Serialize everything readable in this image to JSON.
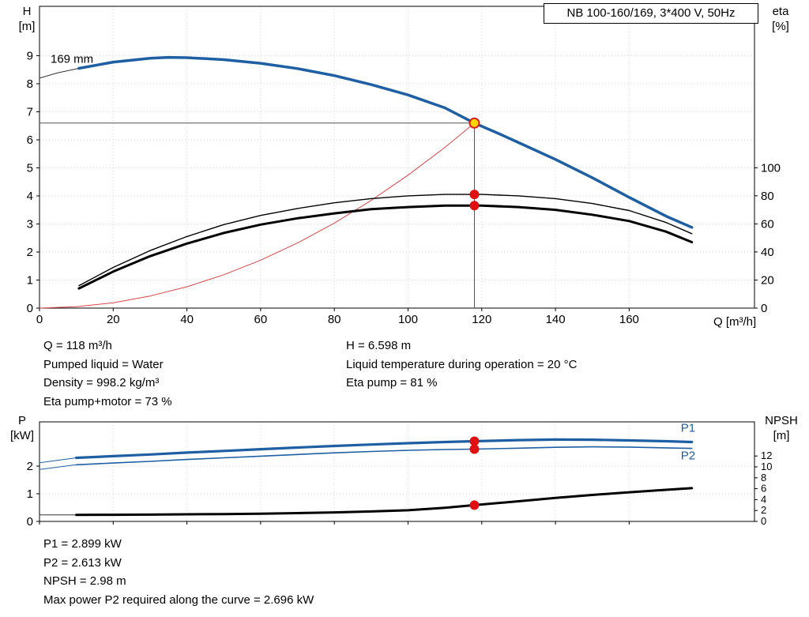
{
  "title_box": "NB 100-160/169, 3*400 V, 50Hz",
  "axis_corner_labels": {
    "top_left": [
      "H",
      "[m]"
    ],
    "top_right": [
      "eta",
      "[%]"
    ],
    "bottom_left": [
      "P",
      "[kW]"
    ],
    "bottom_right": [
      "NPSH",
      "[m]"
    ],
    "x_axis": "Q [m³/h]"
  },
  "info_top": {
    "left": [
      "Q = 118 m³/h",
      "Pumped liquid = Water",
      "Density = 998.2 kg/m³",
      "Eta pump+motor = 73 %"
    ],
    "right": [
      "H = 6.598 m",
      "Liquid temperature during operation = 20 °C",
      "Eta pump = 81 %"
    ]
  },
  "info_bottom": [
    "P1 = 2.899 kW",
    "P2 = 2.613 kW",
    "NPSH = 2.98 m",
    "Max power P2 required along the curve = 2.696 kW"
  ],
  "colors": {
    "curve_blue": "#1e5fa3",
    "dot_red": "#e01010",
    "system_red": "#d94545",
    "marker_yellow": "#ffd400",
    "crosshair_gray": "#555555"
  },
  "chart_data": [
    {
      "type": "line",
      "name": "qh-eta-chart",
      "title": "NB 100-160/169, 3*400 V, 50Hz",
      "grid": true,
      "x_axis": {
        "label": "Q [m³/h]",
        "min": 0,
        "max": 194,
        "ticks": [
          0,
          20,
          40,
          60,
          80,
          100,
          120,
          140,
          160
        ],
        "show_labels": true
      },
      "y_left": {
        "label": "H [m]",
        "min": 0,
        "max": 10.76,
        "ticks": [
          0,
          1,
          2,
          3,
          4,
          5,
          6,
          7,
          8,
          9
        ]
      },
      "y_right": {
        "label": "eta [%]",
        "min": 0,
        "max": 215,
        "ticks": [
          0,
          20,
          40,
          60,
          80,
          100
        ]
      },
      "series": [
        {
          "name": "duty-crosshair-horizontal",
          "color": "#555555",
          "width": 1,
          "axis": "left",
          "points": [
            [
              0,
              6.598
            ],
            [
              118,
              6.598
            ]
          ]
        },
        {
          "name": "duty-crosshair-vertical",
          "color": "#555555",
          "width": 1,
          "axis": "left",
          "points": [
            [
              118,
              0
            ],
            [
              118,
              6.598
            ]
          ]
        },
        {
          "name": "system-curve",
          "color": "#d94545",
          "width": 1,
          "axis": "left",
          "points": [
            [
              0,
              0
            ],
            [
              10,
              0.05
            ],
            [
              20,
              0.19
            ],
            [
              30,
              0.43
            ],
            [
              40,
              0.76
            ],
            [
              50,
              1.19
            ],
            [
              60,
              1.71
            ],
            [
              70,
              2.32
            ],
            [
              80,
              3.03
            ],
            [
              90,
              3.84
            ],
            [
              100,
              4.74
            ],
            [
              110,
              5.73
            ],
            [
              118,
              6.598
            ]
          ]
        },
        {
          "name": "head-curve-extension",
          "color": "#333333",
          "width": 1,
          "axis": "left",
          "points": [
            [
              0,
              8.2
            ],
            [
              5,
              8.39
            ],
            [
              10.7,
              8.55
            ]
          ]
        },
        {
          "name": "eta-pump-curve",
          "color": "#000000",
          "width": 1.4,
          "axis": "right",
          "points": [
            [
              10.7,
              16
            ],
            [
              20,
              29
            ],
            [
              30,
              41
            ],
            [
              40,
              51
            ],
            [
              50,
              59.5
            ],
            [
              60,
              66
            ],
            [
              70,
              71
            ],
            [
              80,
              75
            ],
            [
              90,
              78
            ],
            [
              100,
              80
            ],
            [
              110,
              81
            ],
            [
              120,
              81
            ],
            [
              130,
              80
            ],
            [
              140,
              78
            ],
            [
              150,
              74.5
            ],
            [
              160,
              69.5
            ],
            [
              170,
              61
            ],
            [
              177,
              53
            ]
          ]
        },
        {
          "name": "eta-pump-motor-curve",
          "color": "#000000",
          "width": 3,
          "axis": "right",
          "points": [
            [
              10.7,
              14
            ],
            [
              20,
              26
            ],
            [
              30,
              37
            ],
            [
              40,
              46
            ],
            [
              50,
              53.5
            ],
            [
              60,
              59.5
            ],
            [
              70,
              64
            ],
            [
              80,
              67.5
            ],
            [
              90,
              70.5
            ],
            [
              100,
              72
            ],
            [
              110,
              73
            ],
            [
              120,
              73
            ],
            [
              130,
              72
            ],
            [
              140,
              70
            ],
            [
              150,
              66.5
            ],
            [
              160,
              62
            ],
            [
              170,
              54.5
            ],
            [
              177,
              47
            ]
          ]
        },
        {
          "name": "head-curve",
          "color": "#1e5fa3",
          "width": 3.5,
          "axis": "left",
          "points": [
            [
              10.7,
              8.55
            ],
            [
              20,
              8.77
            ],
            [
              30,
              8.91
            ],
            [
              35,
              8.94
            ],
            [
              40,
              8.93
            ],
            [
              50,
              8.86
            ],
            [
              60,
              8.73
            ],
            [
              70,
              8.54
            ],
            [
              80,
              8.29
            ],
            [
              90,
              7.97
            ],
            [
              100,
              7.6
            ],
            [
              110,
              7.14
            ],
            [
              118,
              6.598
            ],
            [
              125,
              6.2
            ],
            [
              130,
              5.9
            ],
            [
              140,
              5.3
            ],
            [
              150,
              4.65
            ],
            [
              160,
              3.95
            ],
            [
              170,
              3.28
            ],
            [
              177,
              2.88
            ]
          ]
        }
      ],
      "markers": [
        {
          "name": "eta-pump-point",
          "x": 118,
          "y": 81,
          "axis": "right",
          "r": 5.5,
          "fill": "#e01010",
          "stroke": "#e01010"
        },
        {
          "name": "eta-pump-motor-point",
          "x": 118,
          "y": 73,
          "axis": "right",
          "r": 5.5,
          "fill": "#e01010",
          "stroke": "#e01010"
        },
        {
          "name": "duty-point-marker",
          "x": 118,
          "y": 6.598,
          "axis": "left",
          "r": 6,
          "fill": "#ffd400",
          "stroke": "#d02020",
          "stroke_width": 2
        }
      ],
      "annotations": [
        {
          "name": "impeller-size-label",
          "text": "169 mm",
          "x": 3,
          "y": 8.75,
          "axis": "left",
          "color": "#000000"
        }
      ]
    },
    {
      "type": "line",
      "name": "power-npsh-chart",
      "title": "",
      "grid": true,
      "x_axis": {
        "label": "",
        "min": 0,
        "max": 194,
        "ticks": [
          0,
          20,
          40,
          60,
          80,
          100,
          120,
          140,
          160
        ],
        "show_labels": false
      },
      "y_left": {
        "label": "P [kW]",
        "min": 0,
        "max": 3.6,
        "ticks": [
          0,
          1,
          2
        ]
      },
      "y_right": {
        "label": "NPSH [m]",
        "min": 0,
        "max": 18.26,
        "ticks": [
          0,
          2,
          4,
          6,
          8,
          10,
          12
        ]
      },
      "series": [
        {
          "name": "p1-lead-line",
          "color": "#1e5fa3",
          "width": 1,
          "axis": "left",
          "points": [
            [
              0,
              2.12
            ],
            [
              10,
              2.3
            ]
          ]
        },
        {
          "name": "p2-lead-line",
          "color": "#1e5fa3",
          "width": 1,
          "axis": "left",
          "points": [
            [
              0,
              1.88
            ],
            [
              10,
              2.05
            ]
          ]
        },
        {
          "name": "npsh-lead-line",
          "color": "#333333",
          "width": 1,
          "axis": "right",
          "points": [
            [
              0,
              1.2
            ],
            [
              10,
              1.2
            ]
          ]
        },
        {
          "name": "p2-curve",
          "color": "#1e5fa3",
          "width": 1.6,
          "axis": "left",
          "points": [
            [
              10,
              2.05
            ],
            [
              20,
              2.11
            ],
            [
              30,
              2.17
            ],
            [
              40,
              2.24
            ],
            [
              50,
              2.3
            ],
            [
              60,
              2.36
            ],
            [
              70,
              2.42
            ],
            [
              80,
              2.48
            ],
            [
              90,
              2.53
            ],
            [
              100,
              2.57
            ],
            [
              110,
              2.6
            ],
            [
              118,
              2.613
            ],
            [
              130,
              2.65
            ],
            [
              140,
              2.68
            ],
            [
              150,
              2.696
            ],
            [
              160,
              2.69
            ],
            [
              170,
              2.66
            ],
            [
              177,
              2.64
            ]
          ]
        },
        {
          "name": "p1-curve",
          "color": "#1e5fa3",
          "width": 3.2,
          "axis": "left",
          "points": [
            [
              10,
              2.3
            ],
            [
              20,
              2.36
            ],
            [
              30,
              2.42
            ],
            [
              40,
              2.49
            ],
            [
              50,
              2.55
            ],
            [
              60,
              2.61
            ],
            [
              70,
              2.67
            ],
            [
              80,
              2.73
            ],
            [
              90,
              2.78
            ],
            [
              100,
              2.83
            ],
            [
              110,
              2.87
            ],
            [
              118,
              2.899
            ],
            [
              130,
              2.94
            ],
            [
              140,
              2.96
            ],
            [
              150,
              2.955
            ],
            [
              160,
              2.93
            ],
            [
              170,
              2.9
            ],
            [
              177,
              2.87
            ]
          ]
        },
        {
          "name": "npsh-curve",
          "color": "#000000",
          "width": 3,
          "axis": "right",
          "points": [
            [
              10,
              1.2
            ],
            [
              20,
              1.22
            ],
            [
              30,
              1.25
            ],
            [
              40,
              1.3
            ],
            [
              50,
              1.35
            ],
            [
              60,
              1.42
            ],
            [
              70,
              1.52
            ],
            [
              80,
              1.65
            ],
            [
              90,
              1.82
            ],
            [
              100,
              2.05
            ],
            [
              110,
              2.5
            ],
            [
              118,
              2.98
            ],
            [
              130,
              3.7
            ],
            [
              140,
              4.3
            ],
            [
              150,
              4.85
            ],
            [
              160,
              5.35
            ],
            [
              170,
              5.8
            ],
            [
              177,
              6.1
            ]
          ]
        }
      ],
      "markers": [
        {
          "name": "p1-point",
          "x": 118,
          "y": 2.899,
          "axis": "left",
          "r": 5.5,
          "fill": "#e01010",
          "stroke": "#e01010"
        },
        {
          "name": "p2-point",
          "x": 118,
          "y": 2.613,
          "axis": "left",
          "r": 5.5,
          "fill": "#e01010",
          "stroke": "#e01010"
        },
        {
          "name": "npsh-point",
          "x": 118,
          "y": 2.98,
          "axis": "right",
          "r": 5.5,
          "fill": "#e01010",
          "stroke": "#e01010"
        }
      ],
      "annotations": [
        {
          "name": "p1-label",
          "text": "P1",
          "x": 174,
          "y": 3.25,
          "axis": "left",
          "color": "#1e5fa3"
        },
        {
          "name": "p2-label",
          "text": "P2",
          "x": 174,
          "y": 2.25,
          "axis": "left",
          "color": "#1e5fa3"
        }
      ]
    }
  ]
}
